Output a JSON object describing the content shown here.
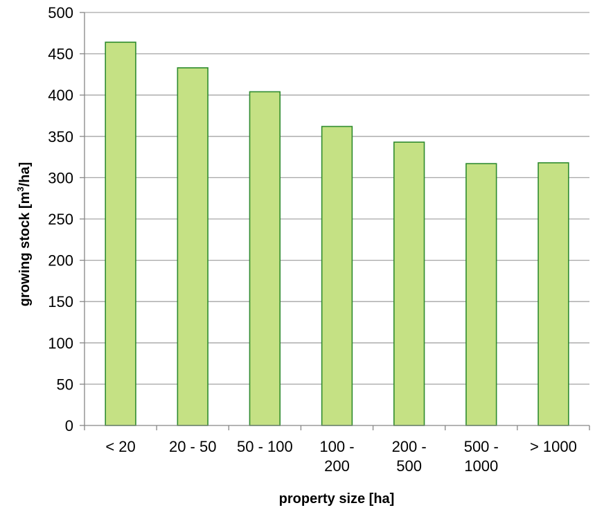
{
  "chart_data": {
    "type": "bar",
    "title": "",
    "xlabel": "property size [ha]",
    "ylabel_main": "growing stock [m",
    "ylabel_sup": "3",
    "ylabel_tail": "/ha]",
    "categories": [
      [
        "< 20"
      ],
      [
        "20 - 50"
      ],
      [
        "50 - 100"
      ],
      [
        "100 -",
        "200"
      ],
      [
        "200 -",
        "500"
      ],
      [
        "500 -",
        "1000"
      ],
      [
        "> 1000"
      ]
    ],
    "values": [
      464,
      433,
      404,
      362,
      343,
      317,
      318
    ],
    "ylim": [
      0,
      500
    ],
    "yticks": [
      0,
      50,
      100,
      150,
      200,
      250,
      300,
      350,
      400,
      450,
      500
    ],
    "grid": true,
    "legend": "none",
    "colors": {
      "bar_fill": "#c5e184",
      "bar_stroke": "#2e8b2e",
      "grid": "#a6a6a6",
      "axis": "#868686"
    }
  }
}
